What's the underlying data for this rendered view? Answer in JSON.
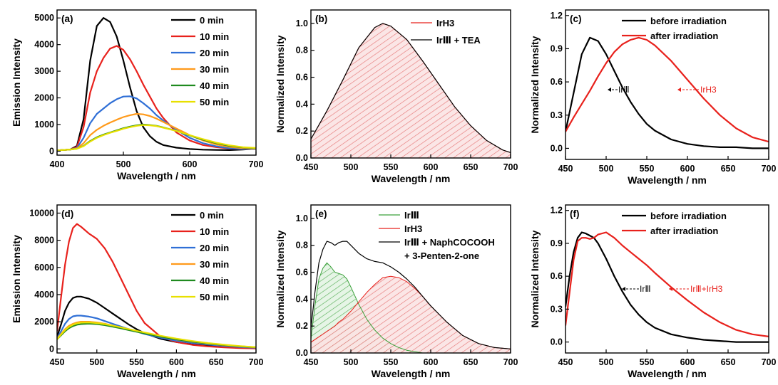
{
  "figure": {
    "chart_data": [
      {
        "panel": "(a)",
        "type": "line",
        "xlabel": "Wavelength / nm",
        "ylabel": "Emission Intensity",
        "xlim": [
          400,
          700
        ],
        "ylim": [
          -150,
          5300
        ],
        "xticks": [
          400,
          500,
          600,
          700
        ],
        "yticks": [
          0,
          1000,
          2000,
          3000,
          4000,
          5000
        ],
        "legend_position": "top-right",
        "x": [
          400,
          420,
          430,
          440,
          450,
          460,
          470,
          480,
          490,
          500,
          510,
          520,
          530,
          540,
          550,
          560,
          580,
          600,
          620,
          640,
          660,
          680,
          700
        ],
        "series": [
          {
            "name": "0   min",
            "color": "#000000",
            "values": [
              30,
              60,
              200,
              1200,
              3400,
              4700,
              5000,
              4850,
              4300,
              3400,
              2400,
              1500,
              900,
              560,
              350,
              230,
              130,
              80,
              55,
              45,
              40,
              60,
              90
            ]
          },
          {
            "name": "10 min",
            "color": "#e8211c",
            "values": [
              30,
              60,
              160,
              900,
              2200,
              3000,
              3500,
              3850,
              3950,
              3800,
              3450,
              3000,
              2500,
              2050,
              1600,
              1250,
              700,
              400,
              230,
              150,
              100,
              80,
              90
            ]
          },
          {
            "name": "20 min",
            "color": "#2f6fd6",
            "values": [
              30,
              60,
              120,
              500,
              1050,
              1400,
              1600,
              1800,
              1950,
              2050,
              2060,
              1980,
              1800,
              1600,
              1350,
              1150,
              800,
              500,
              300,
              180,
              110,
              80,
              90
            ]
          },
          {
            "name": "30 min",
            "color": "#ff9a1a",
            "values": [
              30,
              60,
              100,
              300,
              600,
              800,
              950,
              1070,
              1180,
              1280,
              1350,
              1400,
              1380,
              1320,
              1220,
              1100,
              850,
              600,
              400,
              250,
              160,
              110,
              100
            ]
          },
          {
            "name": "40 min",
            "color": "#1f8a1f",
            "values": [
              30,
              60,
              90,
              200,
              380,
              520,
              620,
              700,
              780,
              860,
              920,
              970,
              1000,
              980,
              950,
              890,
              760,
              590,
              430,
              300,
              200,
              140,
              110
            ]
          },
          {
            "name": "50 min",
            "color": "#e8e000",
            "values": [
              30,
              60,
              90,
              190,
              360,
              500,
              600,
              690,
              760,
              840,
              900,
              950,
              980,
              970,
              940,
              880,
              760,
              600,
              450,
              320,
              220,
              150,
              120
            ]
          }
        ]
      },
      {
        "panel": "(b)",
        "type": "area",
        "xlabel": "Wavelength / nm",
        "ylabel": "Normalized Intensity",
        "xlim": [
          450,
          700
        ],
        "ylim": [
          0,
          1.1
        ],
        "xticks": [
          450,
          500,
          550,
          600,
          650,
          700
        ],
        "yticks": [
          0.0,
          0.2,
          0.4,
          0.6,
          0.8,
          1.0
        ],
        "legend_position": "top-right",
        "x": [
          450,
          470,
          490,
          510,
          530,
          540,
          550,
          570,
          590,
          610,
          630,
          650,
          670,
          690,
          700
        ],
        "series": [
          {
            "name": "IrH3",
            "color": "#e8211c",
            "fill": "hatched",
            "values": [
              0.14,
              0.35,
              0.58,
              0.82,
              0.97,
              1.0,
              0.98,
              0.88,
              0.72,
              0.55,
              0.38,
              0.24,
              0.13,
              0.06,
              0.04
            ]
          },
          {
            "name": "IrⅢ + TEA",
            "color": "#000000",
            "values": [
              0.14,
              0.35,
              0.58,
              0.82,
              0.97,
              1.0,
              0.98,
              0.88,
              0.72,
              0.55,
              0.38,
              0.24,
              0.13,
              0.06,
              0.04
            ]
          }
        ]
      },
      {
        "panel": "(c)",
        "type": "line",
        "xlabel": "Wavelength / nm",
        "ylabel": "Normalized Intensity",
        "xlim": [
          450,
          700
        ],
        "ylim": [
          -0.1,
          1.25
        ],
        "xticks": [
          450,
          500,
          550,
          600,
          650,
          700
        ],
        "yticks": [
          0.0,
          0.3,
          0.6,
          0.9,
          1.2
        ],
        "legend_position": "top-right",
        "annotations": [
          "IrⅢ",
          "IrH3"
        ],
        "x": [
          450,
          460,
          470,
          480,
          490,
          500,
          510,
          520,
          530,
          540,
          550,
          560,
          580,
          600,
          620,
          640,
          660,
          680,
          700
        ],
        "series": [
          {
            "name": "before irradiation",
            "color": "#000000",
            "values": [
              0.15,
              0.5,
              0.85,
              1.0,
              0.97,
              0.85,
              0.7,
              0.55,
              0.42,
              0.31,
              0.22,
              0.16,
              0.08,
              0.04,
              0.02,
              0.01,
              0.01,
              0.0,
              0.0
            ]
          },
          {
            "name": "after    irradiation",
            "color": "#e8211c",
            "values": [
              0.15,
              0.28,
              0.4,
              0.52,
              0.65,
              0.77,
              0.87,
              0.94,
              0.98,
              1.0,
              0.98,
              0.93,
              0.79,
              0.62,
              0.45,
              0.3,
              0.18,
              0.1,
              0.06
            ]
          }
        ]
      },
      {
        "panel": "(d)",
        "type": "line",
        "xlabel": "Wavelength / nm",
        "ylabel": "Emission Intensity",
        "xlim": [
          450,
          700
        ],
        "ylim": [
          -300,
          10600
        ],
        "xticks": [
          450,
          500,
          550,
          600,
          650,
          700
        ],
        "yticks": [
          0,
          2000,
          4000,
          6000,
          8000,
          10000
        ],
        "legend_position": "top-right",
        "x": [
          450,
          455,
          460,
          465,
          470,
          475,
          480,
          490,
          500,
          510,
          520,
          530,
          540,
          550,
          560,
          580,
          600,
          620,
          640,
          660,
          680,
          700
        ],
        "series": [
          {
            "name": "0   min",
            "color": "#000000",
            "values": [
              900,
              1800,
              2800,
              3400,
              3750,
              3850,
              3850,
              3700,
              3400,
              3000,
              2600,
              2200,
              1800,
              1450,
              1150,
              750,
              500,
              330,
              220,
              140,
              80,
              40
            ]
          },
          {
            "name": "10 min",
            "color": "#e8211c",
            "values": [
              1300,
              3800,
              6200,
              7900,
              8900,
              9200,
              9000,
              8500,
              8100,
              7400,
              6400,
              5200,
              4000,
              2800,
              1900,
              900,
              500,
              300,
              180,
              110,
              60,
              30
            ]
          },
          {
            "name": "20 min",
            "color": "#2f6fd6",
            "values": [
              800,
              1300,
              1850,
              2200,
              2400,
              2450,
              2450,
              2380,
              2250,
              2050,
              1850,
              1650,
              1450,
              1270,
              1100,
              820,
              600,
              440,
              320,
              220,
              140,
              80
            ]
          },
          {
            "name": "30 min",
            "color": "#ff9a1a",
            "values": [
              750,
              1100,
              1450,
              1700,
              1850,
              1950,
              2000,
              2000,
              1950,
              1850,
              1720,
              1580,
              1430,
              1290,
              1150,
              900,
              690,
              520,
              380,
              270,
              180,
              110
            ]
          },
          {
            "name": "40 min",
            "color": "#1f8a1f",
            "values": [
              700,
              1000,
              1300,
              1530,
              1680,
              1780,
              1830,
              1860,
              1830,
              1750,
              1640,
              1520,
              1390,
              1260,
              1140,
              900,
              700,
              530,
              390,
              280,
              190,
              120
            ]
          },
          {
            "name": "50 min",
            "color": "#e8e000",
            "values": [
              700,
              1050,
              1380,
              1620,
              1780,
              1880,
              1930,
              1950,
              1900,
              1820,
              1710,
              1590,
              1460,
              1330,
              1210,
              970,
              760,
              580,
              430,
              310,
              210,
              130
            ]
          }
        ]
      },
      {
        "panel": "(e)",
        "type": "area",
        "xlabel": "Wavelength / nm",
        "ylabel": "Normalized Intensity",
        "xlim": [
          450,
          700
        ],
        "ylim": [
          0,
          1.1
        ],
        "xticks": [
          450,
          500,
          550,
          600,
          650,
          700
        ],
        "yticks": [
          0.0,
          0.2,
          0.4,
          0.6,
          0.8,
          1.0
        ],
        "legend_position": "top-right",
        "x": [
          450,
          455,
          460,
          465,
          470,
          475,
          480,
          485,
          490,
          495,
          500,
          510,
          520,
          530,
          540,
          550,
          560,
          570,
          580,
          590,
          600,
          620,
          640,
          660,
          680,
          700
        ],
        "series": [
          {
            "name": "IrⅢ",
            "color": "#3aa03a",
            "fill": "hatched",
            "values": [
              0.1,
              0.35,
              0.55,
              0.63,
              0.67,
              0.64,
              0.6,
              0.59,
              0.58,
              0.55,
              0.49,
              0.36,
              0.25,
              0.17,
              0.11,
              0.07,
              0.04,
              0.02,
              0.01,
              0.0,
              0.0,
              0.0,
              0.0,
              0.0,
              0.0,
              0.0
            ]
          },
          {
            "name": "IrH3",
            "color": "#e8211c",
            "fill": "hatched",
            "values": [
              0.08,
              0.1,
              0.12,
              0.14,
              0.16,
              0.18,
              0.2,
              0.23,
              0.25,
              0.28,
              0.31,
              0.38,
              0.45,
              0.51,
              0.56,
              0.57,
              0.56,
              0.53,
              0.48,
              0.42,
              0.35,
              0.23,
              0.13,
              0.07,
              0.04,
              0.03
            ]
          },
          {
            "name": "IrⅢ + NaphCOCOOH",
            "name_line2": "+ 3-Penten-2-one",
            "color": "#000000",
            "values": [
              0.18,
              0.45,
              0.67,
              0.77,
              0.83,
              0.82,
              0.8,
              0.82,
              0.83,
              0.83,
              0.8,
              0.74,
              0.7,
              0.68,
              0.67,
              0.64,
              0.6,
              0.55,
              0.49,
              0.42,
              0.35,
              0.23,
              0.13,
              0.07,
              0.04,
              0.03
            ]
          }
        ]
      },
      {
        "panel": "(f)",
        "type": "line",
        "xlabel": "Wavelength / nm",
        "ylabel": "Normalized Intensity",
        "xlim": [
          450,
          700
        ],
        "ylim": [
          -0.1,
          1.25
        ],
        "xticks": [
          450,
          500,
          550,
          600,
          650,
          700
        ],
        "yticks": [
          0.0,
          0.3,
          0.6,
          0.9,
          1.2
        ],
        "legend_position": "top-right",
        "annotations": [
          "IrⅢ",
          "IrⅢ+IrH3"
        ],
        "x": [
          450,
          455,
          460,
          465,
          470,
          475,
          480,
          485,
          490,
          500,
          510,
          520,
          530,
          540,
          550,
          560,
          580,
          600,
          620,
          640,
          660,
          680,
          700
        ],
        "series": [
          {
            "name": "before irradiation",
            "color": "#000000",
            "values": [
              0.32,
              0.6,
              0.82,
              0.95,
              1.0,
              0.99,
              0.97,
              0.95,
              0.9,
              0.76,
              0.6,
              0.46,
              0.34,
              0.25,
              0.18,
              0.13,
              0.07,
              0.04,
              0.02,
              0.01,
              0.0,
              0.0,
              0.0
            ]
          },
          {
            "name": "after    irradiation",
            "color": "#e8211c",
            "values": [
              0.15,
              0.45,
              0.75,
              0.92,
              0.95,
              0.95,
              0.94,
              0.95,
              0.98,
              1.0,
              0.95,
              0.88,
              0.82,
              0.76,
              0.7,
              0.63,
              0.5,
              0.38,
              0.27,
              0.18,
              0.11,
              0.07,
              0.05
            ]
          }
        ]
      }
    ]
  }
}
